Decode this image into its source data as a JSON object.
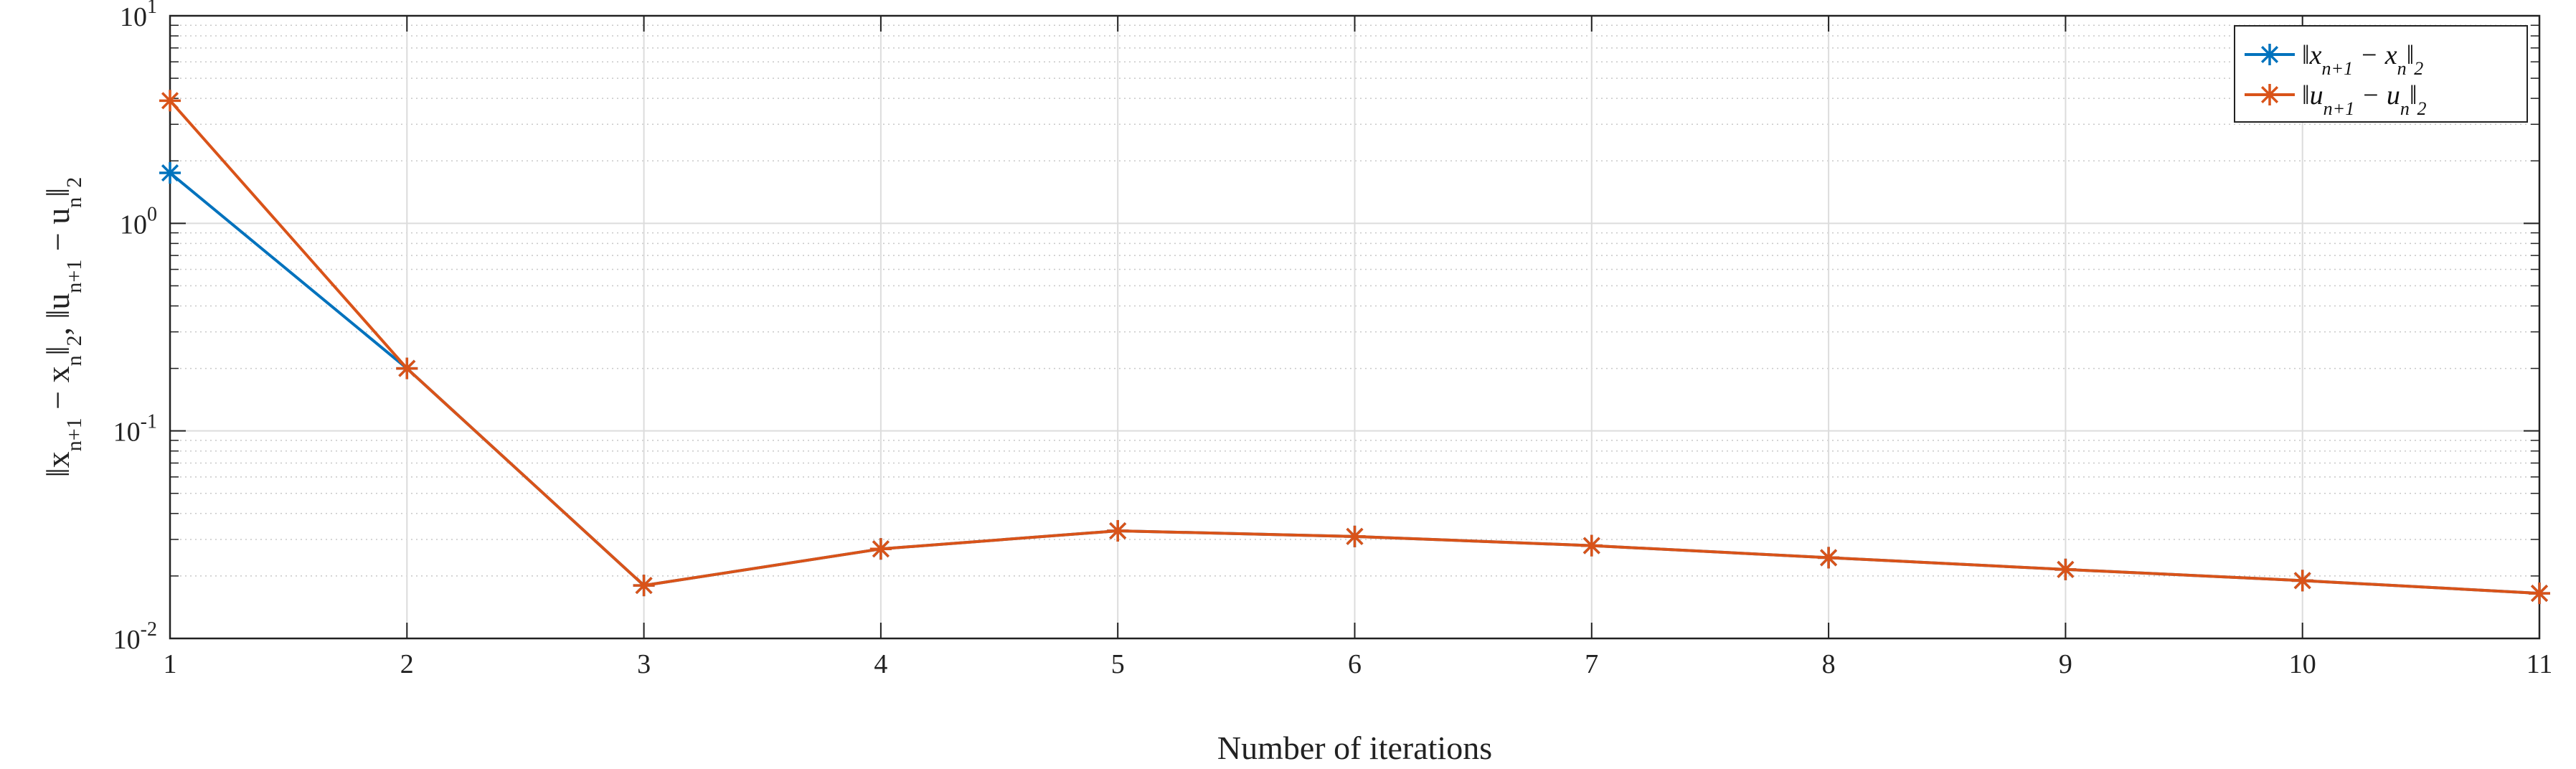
{
  "chart_data": {
    "type": "line",
    "title": "",
    "xlabel": "Number of iterations",
    "ylabel": "||x_{n+1} − x_n||_2 ,  ||u_{n+1} − u_n||_2",
    "ylabel_parts": {
      "first": "‖x",
      "first_sub": "n+1",
      "first_mid": " − x",
      "first_sub2": "n",
      "first_end": "‖",
      "first_norm": "2",
      "sep": ",  ",
      "second": "‖u",
      "second_sub": "n+1",
      "second_mid": " − u",
      "second_sub2": "n",
      "second_end": "‖",
      "second_norm": "2"
    },
    "x": [
      1,
      2,
      3,
      4,
      5,
      6,
      7,
      8,
      9,
      10,
      11
    ],
    "xlim": [
      1,
      11
    ],
    "ylim": [
      0.01,
      10
    ],
    "yscale": "log",
    "grid": true,
    "minor_grid": true,
    "legend_position": "top-right",
    "xticks": [
      "1",
      "2",
      "3",
      "4",
      "5",
      "6",
      "7",
      "8",
      "9",
      "10",
      "11"
    ],
    "yticks": [
      {
        "value": 0.01,
        "base": "10",
        "exp": "-2"
      },
      {
        "value": 0.1,
        "base": "10",
        "exp": "-1"
      },
      {
        "value": 1,
        "base": "10",
        "exp": "0"
      },
      {
        "value": 10,
        "base": "10",
        "exp": "1"
      }
    ],
    "series": [
      {
        "name": "||x_{n+1} − x_n||_2",
        "legend": {
          "a": "‖x",
          "sub1": "n+1",
          "b": " − x",
          "sub2": "n",
          "c": "‖",
          "sub3": "2"
        },
        "color": "#0072BD",
        "marker": "asterisk",
        "values": [
          1.75,
          0.2,
          0.018,
          0.027,
          0.033,
          0.031,
          0.028,
          0.0245,
          0.0215,
          0.019,
          0.0165
        ]
      },
      {
        "name": "||u_{n+1} − u_n||_2",
        "legend": {
          "a": "‖u",
          "sub1": "n+1",
          "b": " − u",
          "sub2": "n",
          "c": "‖",
          "sub3": "2"
        },
        "color": "#D95319",
        "marker": "asterisk",
        "values": [
          3.9,
          0.2,
          0.018,
          0.027,
          0.033,
          0.031,
          0.028,
          0.0245,
          0.0215,
          0.019,
          0.0165
        ]
      }
    ]
  }
}
